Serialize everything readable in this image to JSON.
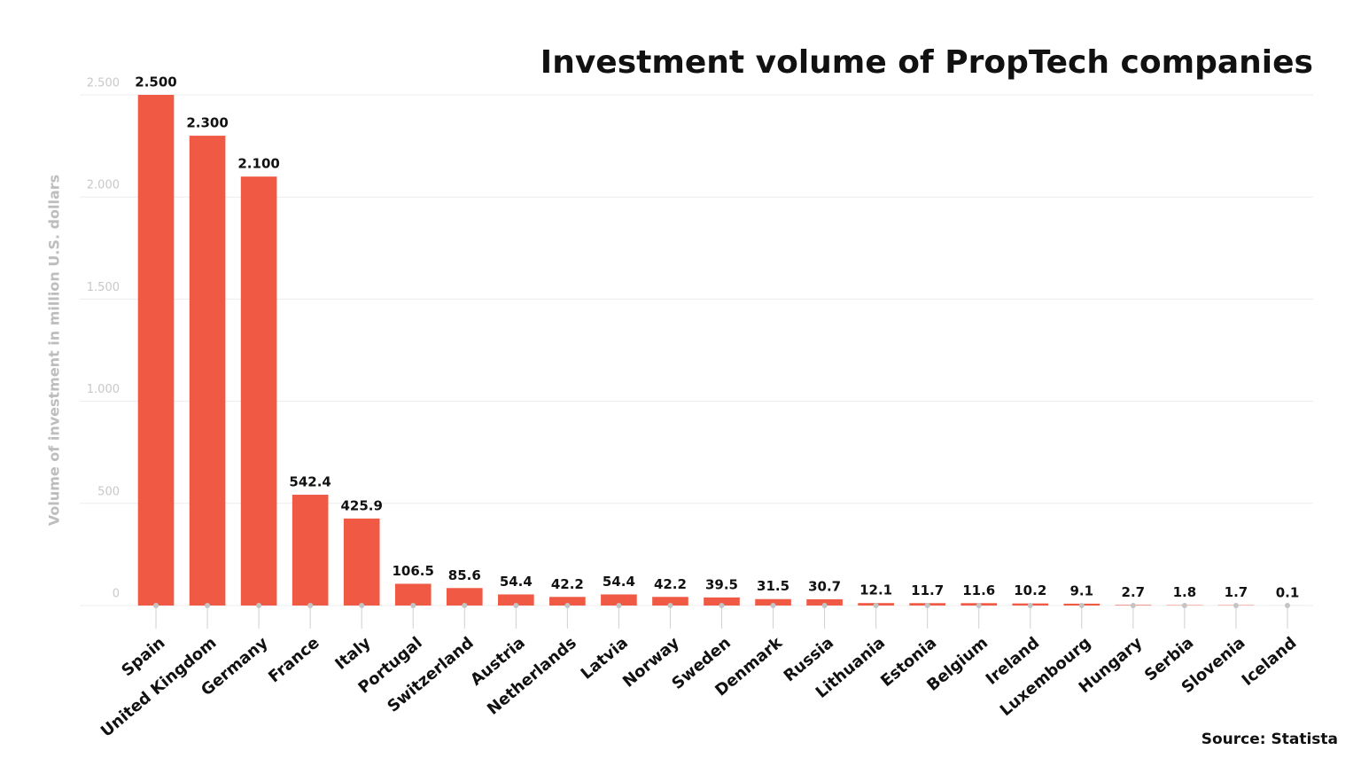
{
  "chart_data": {
    "type": "bar",
    "title": "Investment volume of PropTech companies",
    "y_axis_label": "Volume of investment in million U.S. dollars",
    "source": "Source: Statista",
    "categories": [
      "Spain",
      "United Kingdom",
      "Germany",
      "France",
      "Italy",
      "Portugal",
      "Switzerland",
      "Austria",
      "Netherlands",
      "Latvia",
      "Norway",
      "Sweden",
      "Denmark",
      "Russia",
      "Lithuania",
      "Estonia",
      "Belgium",
      "Ireland",
      "Luxembourg",
      "Hungary",
      "Serbia",
      "Slovenia",
      "Iceland"
    ],
    "values": [
      2500,
      2300,
      2100,
      542.4,
      425.9,
      106.5,
      85.6,
      54.4,
      42.2,
      54.4,
      42.2,
      39.5,
      31.5,
      30.7,
      12.1,
      11.7,
      11.6,
      10.2,
      9.1,
      2.7,
      1.8,
      1.7,
      0.1
    ],
    "value_labels": [
      "2.500",
      "2.300",
      "2.100",
      "542.4",
      "425.9",
      "106.5",
      "85.6",
      "54.4",
      "42.2",
      "54.4",
      "42.2",
      "39.5",
      "31.5",
      "30.7",
      "12.1",
      "11.7",
      "11.6",
      "10.2",
      "9.1",
      "2.7",
      "1.8",
      "1.7",
      "0.1"
    ],
    "color": "#f05a45",
    "ylim": [
      0,
      2500
    ],
    "yticks": [
      0,
      500,
      {
        "value": 1000,
        "label": "1.000"
      },
      {
        "value": 1500,
        "label": "1.500"
      },
      {
        "value": 2000,
        "label": "2.000"
      },
      {
        "value": 2500,
        "label": "2.500"
      }
    ],
    "grid": true
  }
}
